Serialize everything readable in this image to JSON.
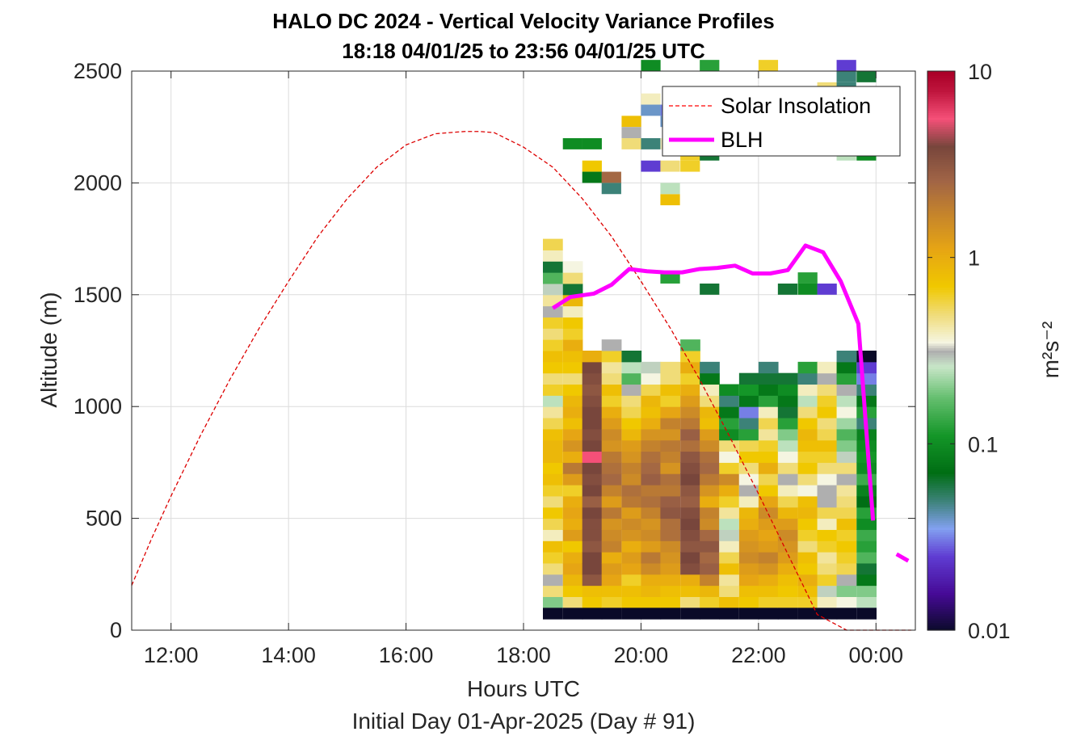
{
  "chart_data": {
    "type": "heatmap",
    "title": "HALO DC 2024 - Vertical Velocity Variance Profiles",
    "subtitle": "18:18 04/01/25 to 23:56 04/01/25  UTC",
    "xlabel": "Hours UTC",
    "xlabel2": "Initial Day 01-Apr-2025 (Day # 91)",
    "ylabel": "Altitude (m)",
    "xlim": [
      11.33,
      24.67
    ],
    "ylim": [
      0,
      2500
    ],
    "x_ticks": [
      12,
      14,
      16,
      18,
      20,
      22,
      24
    ],
    "x_tick_labels": [
      "12:00",
      "14:00",
      "16:00",
      "18:00",
      "20:00",
      "22:00",
      "00:00"
    ],
    "y_ticks": [
      0,
      500,
      1000,
      1500,
      2000,
      2500
    ],
    "y_tick_labels": [
      "0",
      "500",
      "1000",
      "1500",
      "2000",
      "2500"
    ],
    "grid": true,
    "legend_position": "top-right",
    "legend": [
      {
        "name": "Solar Insolation",
        "color": "#ff0000",
        "style": "dashed"
      },
      {
        "name": "BLH",
        "color": "#ff00ff",
        "style": "solid"
      }
    ],
    "colorbar": {
      "label": "m²s⁻²",
      "scale": "log",
      "range": [
        0.01,
        10
      ],
      "tick_labels": [
        "10",
        "1",
        "0.1",
        "0.01"
      ],
      "tick_values": [
        10,
        1,
        0.1,
        0.01
      ]
    },
    "heatmap": {
      "time_bin_hours": 0.333,
      "altitude_bin_m": 50,
      "columns_x_start": [
        18.33,
        18.67,
        19.0,
        19.33,
        19.67,
        20.0,
        20.33,
        20.67,
        21.0,
        21.33,
        21.67,
        22.0,
        22.33,
        22.67,
        23.0,
        23.33,
        23.67
      ],
      "columns_log10": [
        [
          -0.7,
          -0.3,
          -0.5,
          -0.3,
          -0.2,
          -0.1,
          -0.4,
          -0.25,
          -0.15,
          -0.3,
          -0.2,
          -0.1,
          -0.15,
          -0.05,
          -0.05,
          -0.1,
          -0.25,
          -0.35,
          -0.6,
          -0.2,
          -0.3,
          -0.15,
          -0.1,
          -0.2,
          -0.3,
          -0.2,
          -0.5,
          -0.35,
          -0.55,
          -0.8,
          -1.2,
          -0.4,
          -0.25
        ],
        [
          -0.3,
          -0.15,
          -0.05,
          0.05,
          0.0,
          -0.15,
          0.1,
          0.0,
          0.05,
          0.0,
          -0.2,
          0.1,
          0.3,
          0.0,
          0.15,
          0.05,
          -0.1,
          0.0,
          -0.05,
          -0.15,
          -0.3,
          -0.15,
          -0.1,
          0.0,
          -0.2,
          -0.15,
          -0.4,
          -0.05,
          -1.2,
          -0.3,
          -0.45
        ],
        [
          -0.15,
          -0.1,
          0.5,
          0.6,
          0.6,
          0.5,
          0.55,
          0.55,
          0.6,
          0.45,
          0.6,
          0.55,
          0.6,
          0.75,
          0.6,
          0.55,
          0.6,
          0.6,
          0.55,
          0.5,
          0.55,
          0.6,
          0.0
        ],
        [
          -0.2,
          -0.1,
          0.05,
          0.1,
          0.0,
          0.25,
          0.2,
          0.15,
          0.3,
          0.1,
          0.25,
          0.4,
          0.35,
          0.3,
          0.15,
          0.2,
          0.1,
          0.0,
          -0.2,
          -0.1,
          -0.3,
          -0.35,
          -0.2,
          -0.5
        ],
        [
          -0.15,
          -0.1,
          -0.2,
          0.05,
          0.1,
          0.0,
          0.15,
          0.2,
          0.1,
          0.3,
          0.35,
          0.2,
          0.25,
          0.15,
          0.1,
          -0.05,
          -0.15,
          -0.25,
          -0.3,
          -0.5,
          -0.8,
          -0.6,
          -1.2
        ],
        [
          -0.15,
          -0.05,
          0.0,
          0.2,
          0.3,
          0.1,
          0.2,
          0.15,
          0.25,
          0.35,
          0.3,
          0.45,
          0.4,
          0.35,
          0.25,
          0.15,
          0.0,
          -0.1,
          -0.05,
          -0.25,
          -0.45,
          -0.55
        ],
        [
          -0.15,
          -0.1,
          0.0,
          0.1,
          0.15,
          0.2,
          0.35,
          0.35,
          0.5,
          0.45,
          0.3,
          0.35,
          0.15,
          0.25,
          0.3,
          0.15,
          0.25,
          0.05,
          -0.2,
          -0.1,
          -0.3,
          -0.3
        ],
        [
          -0.3,
          -0.1,
          0.0,
          0.55,
          0.6,
          0.5,
          0.55,
          0.6,
          0.55,
          0.45,
          0.5,
          0.6,
          0.55,
          0.5,
          0.35,
          0.45,
          0.3,
          0.2,
          0.1,
          0.0,
          -0.2,
          0.0,
          -0.2,
          -0.8
        ],
        [
          -0.2,
          -0.05,
          0.25,
          0.45,
          0.4,
          0.5,
          0.4,
          0.2,
          0.25,
          0.0,
          0.15,
          0.3,
          0.4,
          0.35,
          0.2,
          0.1,
          -0.1,
          -0.05,
          -0.3,
          -0.4,
          -1.1,
          -1.3
        ],
        [
          -0.1,
          -0.3,
          -0.35,
          -0.1,
          -0.25,
          -0.4,
          -0.55,
          -0.6,
          -0.35,
          -0.2,
          0.0,
          0.2,
          -0.2,
          -0.45,
          -0.3,
          -1.0,
          -0.9,
          -1.1,
          -1.3,
          -1.0
        ],
        [
          -0.15,
          -0.1,
          0.05,
          0.1,
          0.2,
          0.15,
          0.1,
          0.0,
          -0.05,
          -0.4,
          -0.5,
          -0.45,
          -0.3,
          -0.15,
          -0.25,
          -0.9,
          -1.3,
          -1.5,
          -1.1,
          -0.95,
          -1.2
        ],
        [
          -0.2,
          -0.1,
          0.0,
          0.15,
          0.25,
          0.1,
          0.05,
          0.1,
          0.2,
          0.05,
          -0.15,
          -0.25,
          0.0,
          -0.15,
          -0.2,
          -0.35,
          -0.25,
          -0.4,
          -0.9,
          -1.1,
          -1.2,
          -1.3
        ],
        [
          -0.2,
          -0.15,
          -0.1,
          0.0,
          0.1,
          0.15,
          0.2,
          0.1,
          -0.05,
          -0.25,
          -0.4,
          -0.5,
          -0.3,
          -0.45,
          -0.6,
          -0.7,
          -0.9,
          -1.2,
          -1.1,
          -1.0,
          -1.2
        ],
        [
          -0.2,
          -0.1,
          0.0,
          -0.15,
          -0.1,
          -0.3,
          -0.2,
          -0.15,
          -0.05,
          -0.1,
          -0.45,
          -0.3,
          -0.15,
          -0.2,
          -0.1,
          -0.05,
          -0.15,
          -0.3,
          -0.6,
          -0.4,
          -1.3,
          -0.9
        ],
        [
          -0.4,
          -0.55,
          -0.2,
          -0.3,
          -0.35,
          -0.2,
          -0.15,
          -0.4,
          -0.25,
          -0.5,
          -0.5,
          -0.45,
          -0.3,
          -0.2,
          -0.1,
          -0.25,
          -0.3,
          -0.15,
          -0.2,
          -0.3,
          -0.5,
          -0.4
        ],
        [
          -0.45,
          -0.7,
          -0.5,
          -0.25,
          -0.2,
          -0.15,
          -0.2,
          -0.1,
          -0.25,
          -0.3,
          -0.35,
          -0.5,
          -0.3,
          -0.55,
          -0.7,
          -0.8,
          -0.65,
          -0.45,
          -0.6,
          -0.5,
          -0.9,
          -1.1,
          -1.3
        ],
        [
          -0.6,
          -0.7,
          -1.1,
          -1.2,
          -0.8,
          -0.9,
          -0.85,
          -1.0,
          -0.9,
          -1.15,
          -1.05,
          -0.85,
          -1.0,
          -0.95,
          -1.0,
          -1.05,
          -1.3,
          -0.9,
          -1.1,
          -1.3,
          -1.5,
          -1.6,
          -2.0
        ]
      ],
      "bottom_row_value": 0.01,
      "upper_cells": [
        {
          "x": 18.67,
          "alt": 2150,
          "v": -1.0
        },
        {
          "x": 19.0,
          "alt": 2150,
          "v": -1.0
        },
        {
          "x": 19.0,
          "alt": 2050,
          "v": -0.15
        },
        {
          "x": 19.0,
          "alt": 2000,
          "v": -1.1
        },
        {
          "x": 19.33,
          "alt": 2000,
          "v": 0.4
        },
        {
          "x": 19.33,
          "alt": 1950,
          "v": -1.3
        },
        {
          "x": 19.67,
          "alt": 2250,
          "v": -0.1
        },
        {
          "x": 19.67,
          "alt": 2200,
          "v": -0.5
        },
        {
          "x": 19.67,
          "alt": 2150,
          "v": -0.3
        },
        {
          "x": 20.0,
          "alt": 2150,
          "v": -1.3
        },
        {
          "x": 20.0,
          "alt": 2050,
          "v": -1.6
        },
        {
          "x": 20.33,
          "alt": 2250,
          "v": -1.4
        },
        {
          "x": 20.33,
          "alt": 2150,
          "v": -0.4
        },
        {
          "x": 20.33,
          "alt": 2050,
          "v": -0.3
        },
        {
          "x": 20.33,
          "alt": 1900,
          "v": -0.1
        },
        {
          "x": 20.33,
          "alt": 1950,
          "v": -0.6
        },
        {
          "x": 20.67,
          "alt": 2100,
          "v": -0.2
        },
        {
          "x": 20.67,
          "alt": 2050,
          "v": -0.2
        },
        {
          "x": 21.0,
          "alt": 2100,
          "v": -1.2
        },
        {
          "x": 20.33,
          "alt": 1550,
          "v": -0.9
        },
        {
          "x": 21.0,
          "alt": 1500,
          "v": -1.2
        },
        {
          "x": 22.33,
          "alt": 1500,
          "v": -1.2
        },
        {
          "x": 22.67,
          "alt": 1550,
          "v": -0.9
        },
        {
          "x": 22.67,
          "alt": 1500,
          "v": -1.0
        },
        {
          "x": 23.0,
          "alt": 1500,
          "v": -1.6
        },
        {
          "x": 23.0,
          "alt": 2400,
          "v": -0.3
        },
        {
          "x": 23.33,
          "alt": 2450,
          "v": -1.3
        },
        {
          "x": 23.33,
          "alt": 2400,
          "v": -1.3
        },
        {
          "x": 23.33,
          "alt": 2350,
          "v": -1.2
        },
        {
          "x": 23.33,
          "alt": 2100,
          "v": -0.6
        },
        {
          "x": 23.67,
          "alt": 2450,
          "v": -1.2
        },
        {
          "x": 23.67,
          "alt": 2100,
          "v": -1.0
        },
        {
          "x": 20.0,
          "alt": 2500,
          "v": -1.0
        },
        {
          "x": 21.0,
          "alt": 2500,
          "v": -0.9
        },
        {
          "x": 22.0,
          "alt": 2500,
          "v": -0.2
        },
        {
          "x": 23.33,
          "alt": 2500,
          "v": -1.6
        },
        {
          "x": 20.0,
          "alt": 2350,
          "v": -0.4
        },
        {
          "x": 20.33,
          "alt": 2300,
          "v": -1.5
        },
        {
          "x": 20.0,
          "alt": 2300,
          "v": -1.4
        }
      ]
    },
    "series": [
      {
        "name": "Solar Insolation",
        "x": [
          11.33,
          11.67,
          12.0,
          12.5,
          13.0,
          13.5,
          14.0,
          14.5,
          15.0,
          15.5,
          16.0,
          16.5,
          17.0,
          17.25,
          17.5,
          18.0,
          18.5,
          19.0,
          19.5,
          20.0,
          20.5,
          21.0,
          21.5,
          22.0,
          22.5,
          23.0,
          23.5,
          23.8,
          24.0,
          24.6
        ],
        "y": [
          200,
          410,
          600,
          870,
          1120,
          1350,
          1560,
          1760,
          1930,
          2070,
          2170,
          2220,
          2230,
          2230,
          2225,
          2160,
          2070,
          1930,
          1760,
          1560,
          1350,
          1120,
          870,
          610,
          340,
          70,
          0,
          0,
          0,
          0
        ]
      },
      {
        "name": "BLH",
        "segments": [
          {
            "x": [
              18.5,
              18.8,
              19.2,
              19.5,
              19.8,
              20.1,
              20.4,
              20.7,
              21.0,
              21.3,
              21.6,
              21.9,
              22.2,
              22.5,
              22.8,
              23.1,
              23.4,
              23.7,
              23.95
            ],
            "y": [
              1440,
              1490,
              1505,
              1545,
              1615,
              1605,
              1600,
              1600,
              1615,
              1620,
              1630,
              1595,
              1595,
              1610,
              1720,
              1690,
              1560,
              1370,
              490
            ]
          },
          {
            "x": [
              24.35,
              24.55
            ],
            "y": [
              340,
              310
            ]
          }
        ]
      }
    ]
  }
}
